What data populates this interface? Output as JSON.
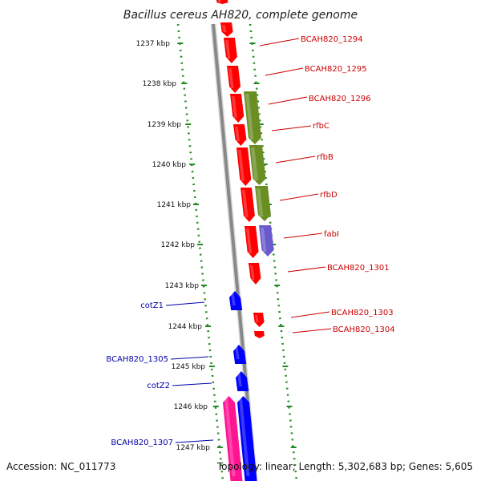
{
  "title": "Bacillus cereus AH820, complete genome",
  "accession": "Accession: NC_011773",
  "topology": "Topology: linear; Length: 5,302,683 bp; Genes: 5,605",
  "colors": {
    "red_gene": "#ff0000",
    "olive_gene": "#6b8e23",
    "purple_gene": "#6a5acd",
    "blue_gene": "#0000ff",
    "pink_gene": "#ff1493",
    "backbone": "#888888",
    "ruler": "#228b22"
  },
  "kbp_labels": [
    "1237 kbp",
    "1238 kbp",
    "1239 kbp",
    "1240 kbp",
    "1241 kbp",
    "1242 kbp",
    "1243 kbp",
    "1244 kbp",
    "1245 kbp",
    "1246 kbp",
    "1247 kbp"
  ],
  "red_labels": [
    "BCAH820_1294",
    "BCAH820_1295",
    "BCAH820_1296",
    "rfbC",
    "rfbB",
    "rfbD",
    "fabI",
    "BCAH820_1301",
    "BCAH820_1303",
    "BCAH820_1304"
  ],
  "blue_labels": [
    "cotZ1",
    "BCAH820_1305",
    "cotZ2",
    "BCAH820_1307"
  ]
}
